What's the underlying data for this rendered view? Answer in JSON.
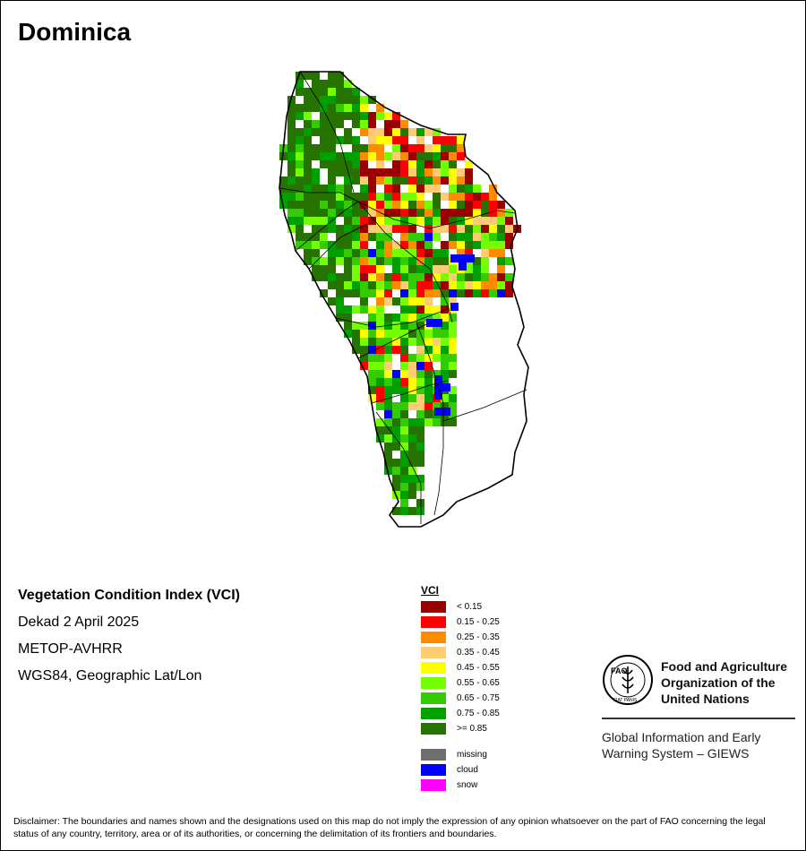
{
  "map_title": "Dominica",
  "info": {
    "index_name": "Vegetation Condition Index (VCI)",
    "period": "Dekad 2 April 2025",
    "sensor": "METOP-AVHRR",
    "projection": "WGS84, Geographic Lat/Lon"
  },
  "legend": {
    "title": "VCI",
    "classes": [
      {
        "label": "< 0.15",
        "color": "#9b0000"
      },
      {
        "label": "0.15 - 0.25",
        "color": "#ff0000"
      },
      {
        "label": "0.25 - 0.35",
        "color": "#ff8c00"
      },
      {
        "label": "0.35 - 0.45",
        "color": "#ffcc73"
      },
      {
        "label": "0.45 - 0.55",
        "color": "#ffff00"
      },
      {
        "label": "0.55 - 0.65",
        "color": "#73ff00"
      },
      {
        "label": "0.65 - 0.75",
        "color": "#33cc00"
      },
      {
        "label": "0.75 - 0.85",
        "color": "#00a000"
      },
      {
        "label": ">= 0.85",
        "color": "#267300"
      }
    ],
    "special": [
      {
        "label": "missing",
        "color": "#6e6e6e"
      },
      {
        "label": "cloud",
        "color": "#0000ff"
      },
      {
        "label": "snow",
        "color": "#ff00ff"
      }
    ]
  },
  "organization": {
    "logo_text": "FAO",
    "logo_motto": "FIAT PANIS",
    "name_line1": "Food and Agriculture",
    "name_line2": "Organization of the",
    "name_line3": "United Nations",
    "giews_line1": "Global Information and Early",
    "giews_line2": "Warning System – GIEWS"
  },
  "disclaimer": "Disclaimer: The boundaries and names shown and the designations used on this map do not imply the expression of any opinion whatsoever on the part of FAO concerning the legal status of any country, territory, area or of its authorities, or concerning the delimitation of its frontiers and boundaries."
}
